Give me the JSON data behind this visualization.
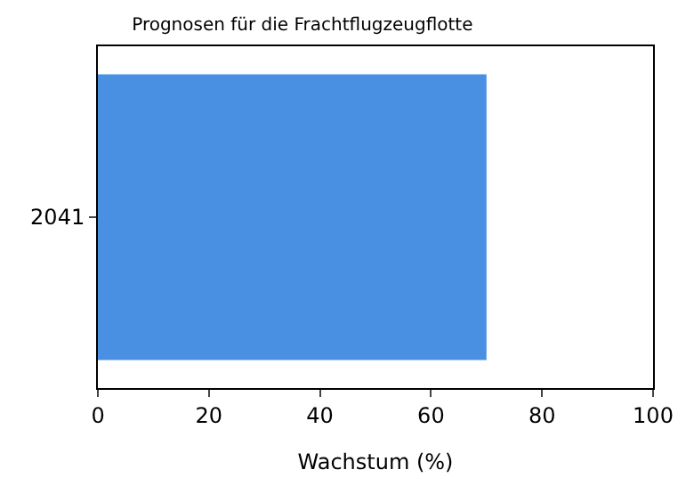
{
  "chart_data": {
    "type": "bar",
    "orientation": "horizontal",
    "title": "Prognosen für die Frachtflugzeugflotte",
    "xlabel": "Wachstum (%)",
    "categories": [
      "2041"
    ],
    "values": [
      70
    ],
    "color": "#4a90e2",
    "xlim": [
      0,
      100
    ],
    "xticks": [
      0,
      20,
      40,
      60,
      80,
      100
    ]
  }
}
